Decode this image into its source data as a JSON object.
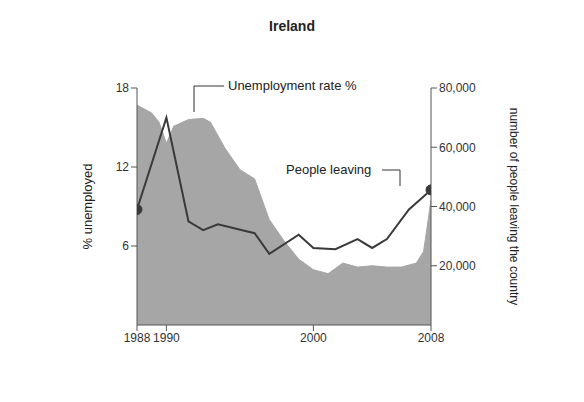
{
  "chart_data": {
    "type": "line",
    "title": "Ireland",
    "xlim": [
      1988,
      2008
    ],
    "xticks": [
      1988,
      1990,
      2000,
      2008
    ],
    "ylabel": "% unemployed",
    "ylim": [
      0,
      18
    ],
    "yticks": [
      6,
      12,
      18
    ],
    "y2label": "number of people leaving the country",
    "y2lim": [
      0,
      80000
    ],
    "y2ticks": [
      {
        "value": 20000,
        "label": "20,000"
      },
      {
        "value": 40000,
        "label": "40,000"
      },
      {
        "value": 60000,
        "label": "60,000"
      },
      {
        "value": 80000,
        "label": "80,000"
      }
    ],
    "grid": false,
    "series": [
      {
        "name": "Unemployment rate %",
        "type": "area",
        "color": "#a6a6a6",
        "x": [
          1988,
          1989,
          1989.5,
          1990,
          1990.5,
          1991.5,
          1992.5,
          1993,
          1994,
          1995,
          1996,
          1997,
          1998,
          1999,
          2000,
          2001,
          2002,
          2003,
          2004,
          2005,
          2006,
          2007,
          2007.5,
          2008
        ],
        "values": [
          16.7,
          16.1,
          15.4,
          13.8,
          15.1,
          15.6,
          15.7,
          15.4,
          13.4,
          11.8,
          11.1,
          8.0,
          6.4,
          5.0,
          4.2,
          3.9,
          4.7,
          4.4,
          4.5,
          4.4,
          4.4,
          4.7,
          5.6,
          9.5
        ]
      },
      {
        "name": "People leaving",
        "type": "line",
        "axis": "y2",
        "color": "#3a3a3a",
        "marker": "circle",
        "x": [
          1988,
          1990,
          1991.5,
          1992.5,
          1993.5,
          1996,
          1997,
          1999,
          2000,
          2001.5,
          2003,
          2004,
          2005,
          2006.5,
          2008
        ],
        "values": [
          39000,
          70000,
          35000,
          32000,
          34000,
          31000,
          24000,
          30500,
          26000,
          25600,
          29000,
          26000,
          29000,
          39000,
          45600
        ]
      }
    ]
  }
}
